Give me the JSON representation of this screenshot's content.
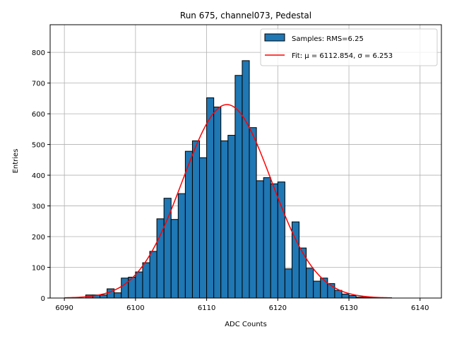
{
  "chart_data": {
    "type": "histogram",
    "title": "Run 675, channel073, Pedestal",
    "xlabel": "ADC Counts",
    "ylabel": "Entries",
    "xlim": [
      6088,
      6143
    ],
    "ylim": [
      0,
      890
    ],
    "xticks": [
      6090,
      6100,
      6110,
      6120,
      6130,
      6140
    ],
    "yticks": [
      0,
      100,
      200,
      300,
      400,
      500,
      600,
      700,
      800
    ],
    "grid": true,
    "legend_position": "top-right",
    "bin_edges": [
      6090,
      6091,
      6092,
      6093,
      6094,
      6095,
      6096,
      6097,
      6098,
      6099,
      6100,
      6101,
      6102,
      6103,
      6104,
      6105,
      6106,
      6107,
      6108,
      6109,
      6110,
      6111,
      6112,
      6113,
      6114,
      6115,
      6116,
      6117,
      6118,
      6119,
      6120,
      6121,
      6122,
      6123,
      6124,
      6125,
      6126,
      6127,
      6128,
      6129,
      6130,
      6131,
      6132,
      6133,
      6134,
      6135,
      6136
    ],
    "counts": [
      0,
      0,
      0,
      10,
      10,
      10,
      30,
      17,
      65,
      68,
      85,
      115,
      152,
      258,
      325,
      256,
      340,
      478,
      512,
      457,
      652,
      622,
      512,
      530,
      725,
      773,
      555,
      382,
      392,
      372,
      378,
      95,
      248,
      163,
      97,
      55,
      65,
      47,
      25,
      13,
      8,
      3,
      2,
      1,
      1,
      1
    ],
    "series": [
      {
        "name": "Samples: RMS=6.25",
        "kind": "bars",
        "color": "#1f77b4",
        "edgecolor": "#000000"
      },
      {
        "name": "Fit: μ = 6112.854, σ = 6.253",
        "kind": "line",
        "color": "#ff0000"
      }
    ],
    "fit": {
      "mu": 6112.854,
      "sigma": 6.253,
      "amplitude": 630,
      "x_range": [
        6090,
        6136
      ]
    }
  }
}
